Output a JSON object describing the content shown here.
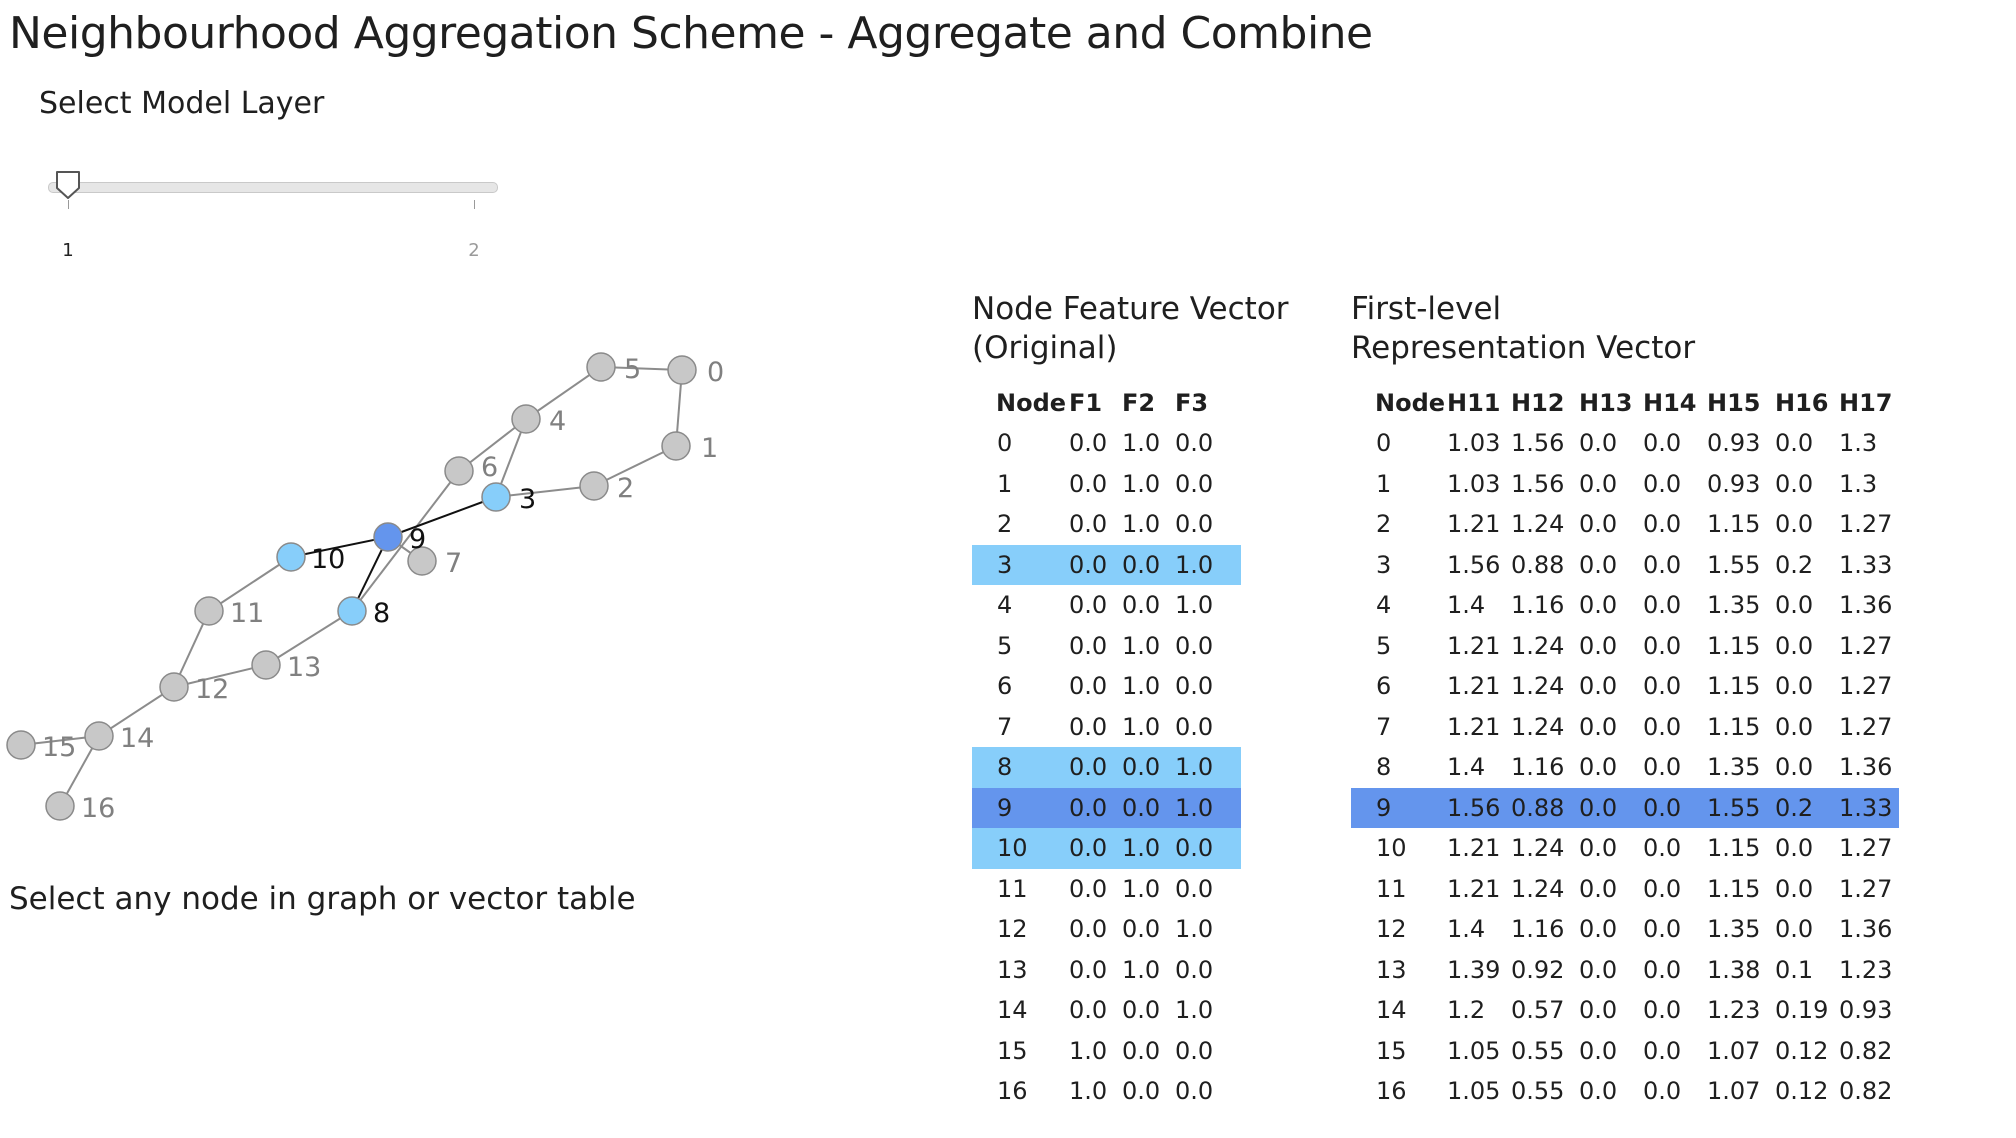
{
  "title": "Neighbourhood Aggregation Scheme - Aggregate and Combine",
  "slider": {
    "label": "Select Model Layer",
    "ticks": [
      "1",
      "2"
    ],
    "selected_value": 1
  },
  "graph": {
    "hint": "Select any node in graph or vector table",
    "selected_node": "9",
    "neighbor_nodes": [
      "3",
      "8",
      "10"
    ],
    "colors": {
      "default_fill": "#c8c8c8",
      "selected_fill": "#6495ed",
      "neighbor_fill": "#87cefa",
      "edge": "#8c8c8c",
      "active_edge": "#111111",
      "label": "#808080",
      "active_label": "#111111"
    }
  },
  "table_original": {
    "title_line1": "Node Feature Vector",
    "title_line2": "(Original)",
    "headers": [
      "Node",
      "F1",
      "F2",
      "F3"
    ],
    "rows": [
      [
        "0",
        "0.0",
        "1.0",
        "0.0"
      ],
      [
        "1",
        "0.0",
        "1.0",
        "0.0"
      ],
      [
        "2",
        "0.0",
        "1.0",
        "0.0"
      ],
      [
        "3",
        "0.0",
        "0.0",
        "1.0"
      ],
      [
        "4",
        "0.0",
        "0.0",
        "1.0"
      ],
      [
        "5",
        "0.0",
        "1.0",
        "0.0"
      ],
      [
        "6",
        "0.0",
        "1.0",
        "0.0"
      ],
      [
        "7",
        "0.0",
        "1.0",
        "0.0"
      ],
      [
        "8",
        "0.0",
        "0.0",
        "1.0"
      ],
      [
        "9",
        "0.0",
        "0.0",
        "1.0"
      ],
      [
        "10",
        "0.0",
        "1.0",
        "0.0"
      ],
      [
        "11",
        "0.0",
        "1.0",
        "0.0"
      ],
      [
        "12",
        "0.0",
        "0.0",
        "1.0"
      ],
      [
        "13",
        "0.0",
        "1.0",
        "0.0"
      ],
      [
        "14",
        "0.0",
        "0.0",
        "1.0"
      ],
      [
        "15",
        "1.0",
        "0.0",
        "0.0"
      ],
      [
        "16",
        "1.0",
        "0.0",
        "0.0"
      ]
    ],
    "selected_rows": [
      "9"
    ],
    "neighbor_rows": [
      "3",
      "8",
      "10"
    ]
  },
  "table_first_level": {
    "title_line1": "First-level",
    "title_line2": "Representation Vector",
    "headers": [
      "Node",
      "H11",
      "H12",
      "H13",
      "H14",
      "H15",
      "H16",
      "H17"
    ],
    "rows": [
      [
        "0",
        "1.03",
        "1.56",
        "0.0",
        "0.0",
        "0.93",
        "0.0",
        "1.3"
      ],
      [
        "1",
        "1.03",
        "1.56",
        "0.0",
        "0.0",
        "0.93",
        "0.0",
        "1.3"
      ],
      [
        "2",
        "1.21",
        "1.24",
        "0.0",
        "0.0",
        "1.15",
        "0.0",
        "1.27"
      ],
      [
        "3",
        "1.56",
        "0.88",
        "0.0",
        "0.0",
        "1.55",
        "0.2",
        "1.33"
      ],
      [
        "4",
        "1.4",
        "1.16",
        "0.0",
        "0.0",
        "1.35",
        "0.0",
        "1.36"
      ],
      [
        "5",
        "1.21",
        "1.24",
        "0.0",
        "0.0",
        "1.15",
        "0.0",
        "1.27"
      ],
      [
        "6",
        "1.21",
        "1.24",
        "0.0",
        "0.0",
        "1.15",
        "0.0",
        "1.27"
      ],
      [
        "7",
        "1.21",
        "1.24",
        "0.0",
        "0.0",
        "1.15",
        "0.0",
        "1.27"
      ],
      [
        "8",
        "1.4",
        "1.16",
        "0.0",
        "0.0",
        "1.35",
        "0.0",
        "1.36"
      ],
      [
        "9",
        "1.56",
        "0.88",
        "0.0",
        "0.0",
        "1.55",
        "0.2",
        "1.33"
      ],
      [
        "10",
        "1.21",
        "1.24",
        "0.0",
        "0.0",
        "1.15",
        "0.0",
        "1.27"
      ],
      [
        "11",
        "1.21",
        "1.24",
        "0.0",
        "0.0",
        "1.15",
        "0.0",
        "1.27"
      ],
      [
        "12",
        "1.4",
        "1.16",
        "0.0",
        "0.0",
        "1.35",
        "0.0",
        "1.36"
      ],
      [
        "13",
        "1.39",
        "0.92",
        "0.0",
        "0.0",
        "1.38",
        "0.1",
        "1.23"
      ],
      [
        "14",
        "1.2",
        "0.57",
        "0.0",
        "0.0",
        "1.23",
        "0.19",
        "0.93"
      ],
      [
        "15",
        "1.05",
        "0.55",
        "0.0",
        "0.0",
        "1.07",
        "0.12",
        "0.82"
      ],
      [
        "16",
        "1.05",
        "0.55",
        "0.0",
        "0.0",
        "1.07",
        "0.12",
        "0.82"
      ]
    ],
    "selected_rows": [
      "9"
    ],
    "neighbor_rows": []
  }
}
